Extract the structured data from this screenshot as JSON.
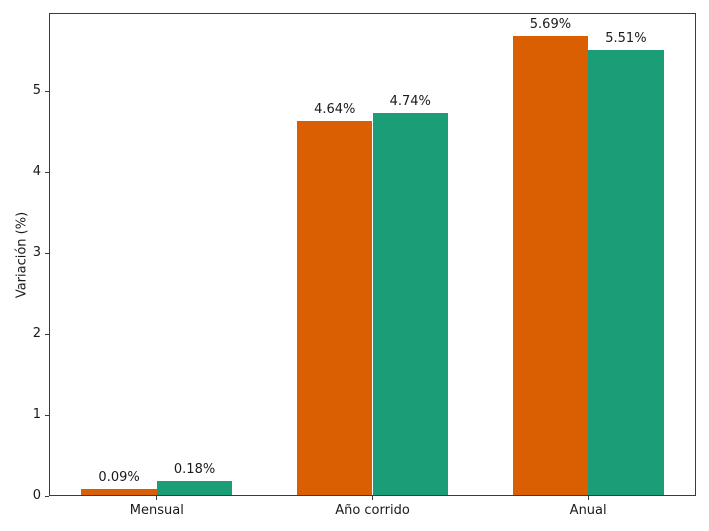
{
  "chart_data": {
    "type": "bar",
    "categories": [
      "Mensual",
      "Año corrido",
      "Anual"
    ],
    "series": [
      {
        "color": "#d95f02",
        "values": [
          0.09,
          4.64,
          5.69
        ],
        "bar_labels": [
          "0.09%",
          "4.64%",
          "5.69%"
        ]
      },
      {
        "color": "#1b9e77",
        "values": [
          0.18,
          4.74,
          5.51
        ],
        "bar_labels": [
          "0.18%",
          "4.74%",
          "5.51%"
        ]
      }
    ],
    "xlabel": "",
    "ylabel": "Variación (%)",
    "yticks": [
      "0",
      "1",
      "2",
      "3",
      "4",
      "5"
    ],
    "ylim": [
      0,
      5.97
    ],
    "xlim": [
      -0.5,
      2.5
    ],
    "bar_width": 0.35,
    "grid": false,
    "legend": "none"
  }
}
